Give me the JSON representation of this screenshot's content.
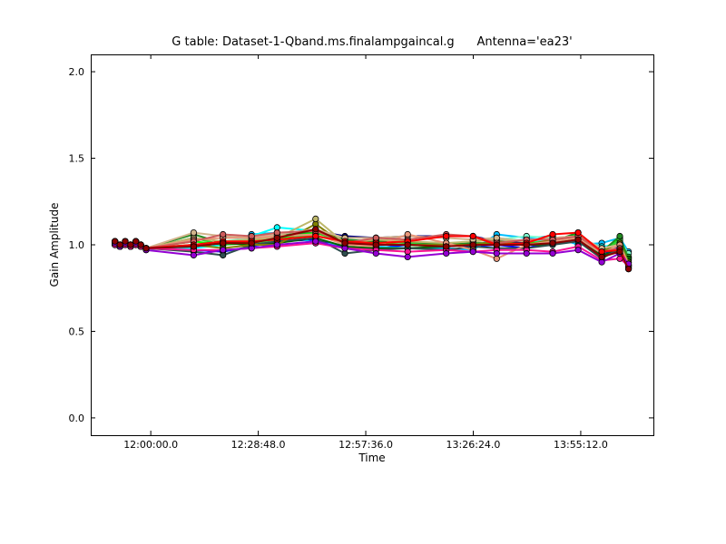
{
  "chart_data": {
    "type": "line",
    "title": "G table: Dataset-1-Qband.ms.finalampgaincal.g      Antenna='ea23'",
    "xlabel": "Time",
    "ylabel": "Gain Amplitude",
    "xlim": [
      "11:43:55",
      "14:14:40"
    ],
    "ylim": [
      -0.1,
      2.1
    ],
    "x_ticks": [
      "12:00:00.0",
      "12:28:48.0",
      "12:57:36.0",
      "13:26:24.0",
      "13:55:12.0"
    ],
    "y_ticks": [
      "0.0",
      "0.5",
      "1.0",
      "1.5",
      "2.0"
    ],
    "grid": false,
    "legend": "none",
    "x": [
      "11:50:25",
      "11:51:45",
      "11:53:10",
      "11:54:35",
      "11:56:00",
      "11:57:20",
      "11:58:45",
      "12:11:30",
      "12:19:20",
      "12:27:00",
      "12:33:50",
      "12:44:10",
      "12:52:00",
      "13:00:20",
      "13:08:50",
      "13:19:10",
      "13:26:20",
      "13:32:40",
      "13:40:40",
      "13:47:40",
      "13:54:30",
      "14:00:50",
      "14:05:40",
      "14:08:00"
    ],
    "series": [
      {
        "color": "#000080",
        "values": [
          1.01,
          0.99,
          1.01,
          1.0,
          1.02,
          1.0,
          0.98,
          0.99,
          1.02,
          1.02,
          1.05,
          1.08,
          1.05,
          1.04,
          1.05,
          1.05,
          1.05,
          1.02,
          1.01,
          1.02,
          1.04,
          0.96,
          0.95,
          0.86
        ]
      },
      {
        "color": "#0000ff",
        "values": [
          1.02,
          1.0,
          1.02,
          0.99,
          1.01,
          1.0,
          0.98,
          0.97,
          0.96,
          0.99,
          1.02,
          1.03,
          0.98,
          0.98,
          1.0,
          1.0,
          0.99,
          1.0,
          0.98,
          1.02,
          1.03,
          0.93,
          1.0,
          0.9
        ]
      },
      {
        "color": "#00bfff",
        "values": [
          1.0,
          0.99,
          1.0,
          0.99,
          1.01,
          0.99,
          0.98,
          0.99,
          1.0,
          1.06,
          1.07,
          1.01,
          1.0,
          0.99,
          0.98,
          0.98,
          0.97,
          1.06,
          1.04,
          1.05,
          1.0,
          1.01,
          1.04,
          0.96
        ]
      },
      {
        "color": "#00ffff",
        "values": [
          1.01,
          1.0,
          1.01,
          1.0,
          1.0,
          0.99,
          0.98,
          0.98,
          1.0,
          1.05,
          1.1,
          1.08,
          1.02,
          1.0,
          1.0,
          0.99,
          1.02,
          1.04,
          1.02,
          1.02,
          1.03,
          0.99,
          1.0,
          0.93
        ]
      },
      {
        "color": "#7fffd4",
        "values": [
          1.02,
          0.99,
          1.02,
          1.0,
          1.02,
          1.0,
          0.97,
          1.0,
          1.02,
          1.04,
          1.05,
          1.06,
          1.03,
          1.02,
          1.0,
          0.99,
          1.02,
          1.03,
          1.05,
          1.04,
          1.05,
          0.97,
          1.02,
          0.95
        ]
      },
      {
        "color": "#00ff00",
        "values": [
          1.01,
          0.99,
          1.01,
          0.99,
          1.01,
          0.99,
          0.98,
          1.02,
          1.0,
          1.02,
          1.04,
          1.07,
          1.02,
          1.01,
          1.0,
          0.99,
          1.01,
          1.0,
          1.01,
          1.02,
          1.06,
          0.95,
          1.04,
          0.92
        ]
      },
      {
        "color": "#32cd32",
        "values": [
          1.0,
          1.0,
          1.0,
          1.0,
          1.0,
          1.0,
          0.98,
          1.04,
          1.0,
          1.01,
          1.03,
          1.06,
          1.01,
          1.03,
          1.01,
          1.0,
          1.0,
          1.01,
          1.0,
          1.01,
          1.05,
          0.95,
          1.03,
          0.93
        ]
      },
      {
        "color": "#228b22",
        "values": [
          1.01,
          0.99,
          1.01,
          1.0,
          1.01,
          1.0,
          0.98,
          1.06,
          1.01,
          1.03,
          1.05,
          1.08,
          1.03,
          1.02,
          1.02,
          1.0,
          1.01,
          1.01,
          1.0,
          1.02,
          1.07,
          0.96,
          1.05,
          0.91
        ]
      },
      {
        "color": "#006400",
        "values": [
          1.02,
          1.0,
          1.02,
          1.0,
          1.02,
          1.0,
          0.98,
          0.99,
          1.01,
          1.0,
          1.01,
          1.04,
          0.99,
          0.98,
          0.98,
          0.99,
          1.0,
          1.0,
          1.0,
          1.0,
          1.04,
          0.94,
          0.97,
          0.92
        ]
      },
      {
        "color": "#2f4f4f",
        "values": [
          1.0,
          0.99,
          1.0,
          0.99,
          1.0,
          0.99,
          0.98,
          0.96,
          0.94,
          1.0,
          1.02,
          1.04,
          0.95,
          0.97,
          0.98,
          0.97,
          0.99,
          0.98,
          0.98,
          1.0,
          1.02,
          0.92,
          0.98,
          0.88
        ]
      },
      {
        "color": "#808000",
        "values": [
          1.01,
          0.99,
          1.01,
          1.0,
          1.01,
          1.0,
          0.98,
          1.0,
          0.98,
          1.0,
          1.0,
          1.12,
          1.0,
          1.01,
          1.0,
          1.0,
          1.0,
          1.02,
          1.0,
          1.03,
          1.04,
          0.96,
          1.01,
          0.9
        ]
      },
      {
        "color": "#bdb76b",
        "values": [
          1.02,
          1.0,
          1.02,
          1.0,
          1.02,
          1.0,
          0.98,
          1.04,
          1.02,
          1.03,
          1.04,
          1.15,
          1.01,
          1.03,
          1.02,
          1.01,
          1.02,
          1.03,
          1.02,
          1.04,
          1.05,
          0.98,
          1.0,
          0.89
        ]
      },
      {
        "color": "#d2b48c",
        "values": [
          1.01,
          1.0,
          1.01,
          1.0,
          1.01,
          0.99,
          0.98,
          1.07,
          1.05,
          1.04,
          1.06,
          1.09,
          1.04,
          1.04,
          1.05,
          1.04,
          1.03,
          1.04,
          1.02,
          1.04,
          1.05,
          0.98,
          1.0,
          0.88
        ]
      },
      {
        "color": "#e9967a",
        "values": [
          1.0,
          0.99,
          1.0,
          0.99,
          1.0,
          0.99,
          0.98,
          1.03,
          1.04,
          1.04,
          1.05,
          1.06,
          1.0,
          0.99,
          1.06,
          1.01,
          0.97,
          0.92,
          1.0,
          1.02,
          1.04,
          0.95,
          1.0,
          0.87
        ]
      },
      {
        "color": "#cd5c5c",
        "values": [
          1.02,
          1.0,
          1.02,
          1.0,
          1.02,
          1.0,
          0.98,
          1.02,
          1.06,
          1.05,
          1.07,
          1.08,
          1.01,
          1.04,
          1.03,
          1.06,
          1.05,
          1.01,
          1.03,
          1.03,
          1.05,
          0.96,
          0.98,
          0.87
        ]
      },
      {
        "color": "#ff0000",
        "values": [
          1.01,
          0.99,
          1.01,
          0.99,
          1.01,
          0.99,
          0.98,
          1.0,
          1.02,
          1.02,
          1.03,
          1.05,
          1.02,
          1.01,
          1.02,
          1.05,
          1.05,
          1.0,
          1.01,
          1.06,
          1.07,
          0.96,
          0.97,
          0.88
        ]
      },
      {
        "color": "#ff1493",
        "values": [
          1.0,
          1.0,
          1.0,
          0.99,
          1.0,
          0.99,
          0.98,
          0.97,
          0.97,
          0.98,
          0.99,
          1.01,
          0.98,
          0.97,
          0.96,
          0.97,
          0.96,
          0.97,
          0.97,
          0.96,
          0.99,
          0.91,
          0.92,
          0.88
        ]
      },
      {
        "color": "#9400d3",
        "values": [
          1.01,
          0.99,
          1.01,
          1.0,
          1.01,
          1.0,
          0.97,
          0.94,
          0.97,
          0.98,
          1.0,
          1.02,
          0.98,
          0.95,
          0.93,
          0.95,
          0.96,
          0.95,
          0.95,
          0.95,
          0.97,
          0.9,
          0.95,
          0.89
        ]
      },
      {
        "color": "#8b0000",
        "values": [
          1.02,
          1.0,
          1.02,
          1.0,
          1.02,
          1.0,
          0.98,
          0.99,
          1.01,
          1.01,
          1.04,
          1.09,
          1.01,
          1.0,
          1.0,
          0.99,
          1.0,
          1.0,
          1.0,
          1.01,
          1.03,
          0.93,
          0.96,
          0.86
        ]
      }
    ]
  }
}
